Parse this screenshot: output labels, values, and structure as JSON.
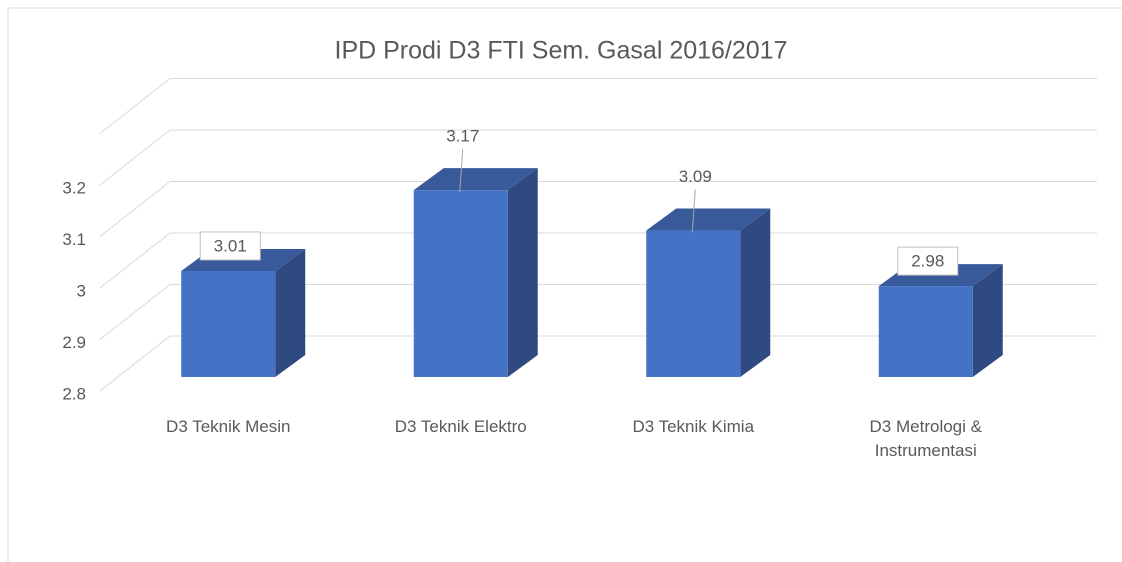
{
  "chart_data": {
    "type": "bar3d",
    "title": "IPD Prodi D3 FTI Sem. Gasal 2016/2017",
    "categories": [
      "D3 Teknik Mesin",
      "D3 Teknik Elektro",
      "D3 Teknik Kimia",
      "D3 Metrologi & Instrumentasi"
    ],
    "values": [
      3.01,
      3.17,
      3.09,
      2.98
    ],
    "color": "#4472c4",
    "ylim": [
      2.8,
      3.3
    ],
    "yticks": [
      2.8,
      2.9,
      3,
      3.1,
      3.2
    ],
    "grid": true
  }
}
